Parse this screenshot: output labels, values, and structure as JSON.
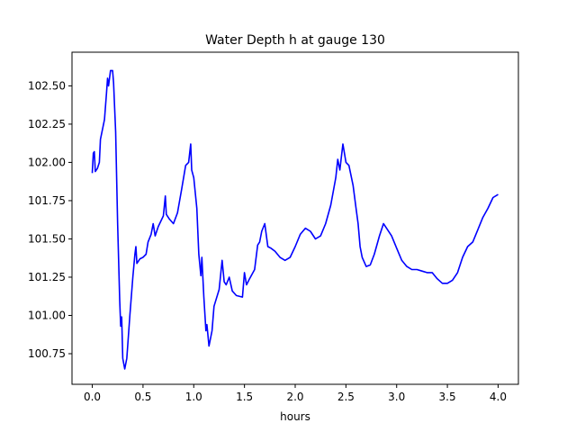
{
  "chart_data": {
    "type": "line",
    "title": "Water Depth h at gauge 130",
    "xlabel": "hours",
    "ylabel": "",
    "xlim": [
      -0.2,
      4.2
    ],
    "ylim": [
      100.55,
      102.72
    ],
    "xticks": [
      0.0,
      0.5,
      1.0,
      1.5,
      2.0,
      2.5,
      3.0,
      3.5,
      4.0
    ],
    "xtick_labels": [
      "0.0",
      "0.5",
      "1.0",
      "1.5",
      "2.0",
      "2.5",
      "3.0",
      "3.5",
      "4.0"
    ],
    "yticks": [
      100.75,
      101.0,
      101.25,
      101.5,
      101.75,
      102.0,
      102.25,
      102.5
    ],
    "ytick_labels": [
      "100.75",
      "101.00",
      "101.25",
      "101.50",
      "101.75",
      "102.00",
      "102.25",
      "102.50"
    ],
    "grid": false,
    "series": [
      {
        "color": "#0000ff",
        "points": [
          [
            0.0,
            101.93
          ],
          [
            0.01,
            102.06
          ],
          [
            0.02,
            102.07
          ],
          [
            0.03,
            101.94
          ],
          [
            0.05,
            101.96
          ],
          [
            0.07,
            102.0
          ],
          [
            0.08,
            102.15
          ],
          [
            0.12,
            102.28
          ],
          [
            0.14,
            102.45
          ],
          [
            0.15,
            102.55
          ],
          [
            0.16,
            102.5
          ],
          [
            0.18,
            102.6
          ],
          [
            0.2,
            102.6
          ],
          [
            0.21,
            102.52
          ],
          [
            0.23,
            102.2
          ],
          [
            0.25,
            101.6
          ],
          [
            0.27,
            101.1
          ],
          [
            0.28,
            100.93
          ],
          [
            0.29,
            100.99
          ],
          [
            0.3,
            100.72
          ],
          [
            0.32,
            100.65
          ],
          [
            0.34,
            100.72
          ],
          [
            0.37,
            101.0
          ],
          [
            0.4,
            101.25
          ],
          [
            0.42,
            101.4
          ],
          [
            0.43,
            101.45
          ],
          [
            0.44,
            101.34
          ],
          [
            0.47,
            101.37
          ],
          [
            0.5,
            101.38
          ],
          [
            0.53,
            101.4
          ],
          [
            0.55,
            101.48
          ],
          [
            0.58,
            101.53
          ],
          [
            0.6,
            101.6
          ],
          [
            0.62,
            101.52
          ],
          [
            0.65,
            101.58
          ],
          [
            0.7,
            101.65
          ],
          [
            0.72,
            101.78
          ],
          [
            0.73,
            101.66
          ],
          [
            0.76,
            101.63
          ],
          [
            0.8,
            101.6
          ],
          [
            0.84,
            101.67
          ],
          [
            0.88,
            101.82
          ],
          [
            0.92,
            101.98
          ],
          [
            0.95,
            102.0
          ],
          [
            0.97,
            102.12
          ],
          [
            0.98,
            101.95
          ],
          [
            1.0,
            101.9
          ],
          [
            1.03,
            101.7
          ],
          [
            1.05,
            101.4
          ],
          [
            1.07,
            101.26
          ],
          [
            1.08,
            101.38
          ],
          [
            1.1,
            101.12
          ],
          [
            1.12,
            100.9
          ],
          [
            1.13,
            100.94
          ],
          [
            1.15,
            100.8
          ],
          [
            1.18,
            100.9
          ],
          [
            1.2,
            101.06
          ],
          [
            1.25,
            101.17
          ],
          [
            1.28,
            101.36
          ],
          [
            1.3,
            101.22
          ],
          [
            1.32,
            101.2
          ],
          [
            1.35,
            101.25
          ],
          [
            1.38,
            101.16
          ],
          [
            1.42,
            101.13
          ],
          [
            1.48,
            101.12
          ],
          [
            1.5,
            101.28
          ],
          [
            1.52,
            101.2
          ],
          [
            1.55,
            101.24
          ],
          [
            1.6,
            101.3
          ],
          [
            1.63,
            101.46
          ],
          [
            1.65,
            101.48
          ],
          [
            1.67,
            101.55
          ],
          [
            1.7,
            101.6
          ],
          [
            1.73,
            101.45
          ],
          [
            1.76,
            101.44
          ],
          [
            1.8,
            101.42
          ],
          [
            1.85,
            101.38
          ],
          [
            1.9,
            101.36
          ],
          [
            1.95,
            101.38
          ],
          [
            2.0,
            101.45
          ],
          [
            2.05,
            101.53
          ],
          [
            2.1,
            101.57
          ],
          [
            2.15,
            101.55
          ],
          [
            2.2,
            101.5
          ],
          [
            2.25,
            101.52
          ],
          [
            2.3,
            101.6
          ],
          [
            2.35,
            101.72
          ],
          [
            2.4,
            101.9
          ],
          [
            2.42,
            102.02
          ],
          [
            2.44,
            101.95
          ],
          [
            2.47,
            102.12
          ],
          [
            2.5,
            102.0
          ],
          [
            2.53,
            101.98
          ],
          [
            2.57,
            101.85
          ],
          [
            2.6,
            101.7
          ],
          [
            2.62,
            101.6
          ],
          [
            2.64,
            101.45
          ],
          [
            2.66,
            101.38
          ],
          [
            2.7,
            101.32
          ],
          [
            2.74,
            101.33
          ],
          [
            2.78,
            101.4
          ],
          [
            2.83,
            101.52
          ],
          [
            2.87,
            101.6
          ],
          [
            2.9,
            101.57
          ],
          [
            2.95,
            101.52
          ],
          [
            3.0,
            101.44
          ],
          [
            3.05,
            101.36
          ],
          [
            3.1,
            101.32
          ],
          [
            3.15,
            101.3
          ],
          [
            3.2,
            101.3
          ],
          [
            3.25,
            101.29
          ],
          [
            3.3,
            101.28
          ],
          [
            3.35,
            101.28
          ],
          [
            3.4,
            101.24
          ],
          [
            3.45,
            101.21
          ],
          [
            3.5,
            101.21
          ],
          [
            3.55,
            101.23
          ],
          [
            3.6,
            101.28
          ],
          [
            3.65,
            101.38
          ],
          [
            3.7,
            101.45
          ],
          [
            3.75,
            101.48
          ],
          [
            3.8,
            101.56
          ],
          [
            3.85,
            101.64
          ],
          [
            3.9,
            101.7
          ],
          [
            3.95,
            101.77
          ],
          [
            4.0,
            101.79
          ]
        ]
      }
    ]
  }
}
